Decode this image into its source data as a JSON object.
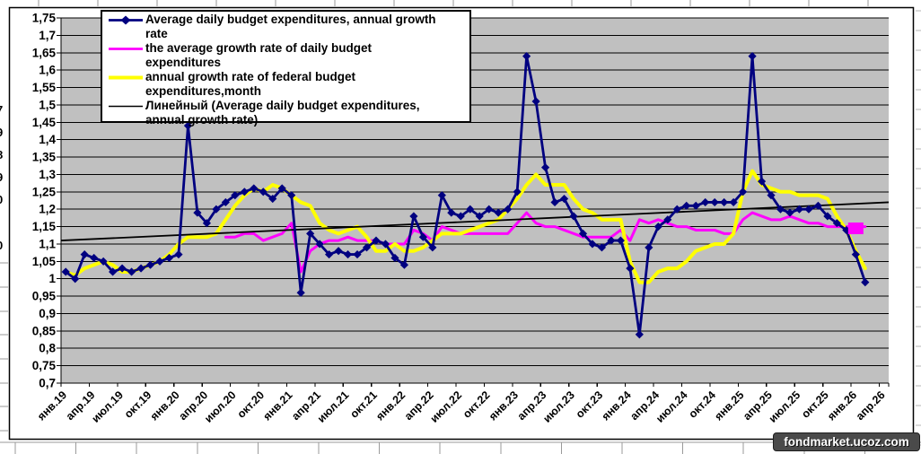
{
  "watermark": {
    "text": "fondmarket.ucoz.com"
  },
  "sheet": {
    "left_digits": [
      "7",
      "9",
      "8",
      "9",
      "0",
      "0"
    ]
  },
  "legend": {
    "items": [
      {
        "name": "Average daily budget expenditures,  annual growth rate",
        "line1": "Average daily budget expenditures,  annual growth",
        "line2": "rate",
        "marker": "line-diamond",
        "color": "#000080"
      },
      {
        "name": "the average growth rate of daily budget expenditures",
        "line1": "the average growth rate of daily budget",
        "line2": "expenditures",
        "marker": "line",
        "color": "#FF00FF"
      },
      {
        "name": "annual growth rate of federal budget expenditures,month",
        "line1": "annual growth rate of federal budget",
        "line2": "expenditures,month",
        "marker": "line",
        "color": "#FFFF00"
      },
      {
        "name": "Линейный (Average daily budget expenditures, annual growth rate)",
        "line1": "Линейный (Average daily budget expenditures,",
        "line2": "annual growth rate)",
        "marker": "line",
        "color": "#000000"
      }
    ]
  },
  "chart_data": {
    "type": "line",
    "title": "",
    "xlabel": "",
    "ylabel": "",
    "ylim": [
      0.7,
      1.75
    ],
    "ytick_step": 0.05,
    "grid": true,
    "plot_bg": "#C0C0C0",
    "legend_position": "top-left-inside",
    "n_categories": 88,
    "x_tick_every": 3,
    "x_tick_labels": [
      "янв.19",
      "апр.19",
      "июл.19",
      "окт.19",
      "янв.20",
      "апр.20",
      "июл.20",
      "окт.20",
      "янв.21",
      "апр.21",
      "июл.21",
      "окт.21",
      "янв.22",
      "апр.22",
      "июл.22",
      "окт.22",
      "янв.23",
      "апр.23",
      "июл.23",
      "окт.23",
      "янв.24",
      "апр.24",
      "июл.24",
      "окт.24",
      "янв.25",
      "апр.25",
      "июл.25",
      "окт.25",
      "янв.26",
      "апр.26"
    ],
    "y_tick_labels": [
      "1,75",
      "1,7",
      "1,65",
      "1,6",
      "1,55",
      "1,5",
      "1,45",
      "1,4",
      "1,35",
      "1,3",
      "1,25",
      "1,2",
      "1,15",
      "1,1",
      "1,05",
      "1",
      "0,95",
      "0,9",
      "0,85",
      "0,8",
      "0,75",
      "0,7"
    ],
    "series": [
      {
        "name": "Average daily budget expenditures,  annual growth rate",
        "color": "#000080",
        "marker": "diamond",
        "line_width": 2.8,
        "start_index": 0,
        "values": [
          1.02,
          1.0,
          1.07,
          1.06,
          1.05,
          1.02,
          1.03,
          1.02,
          1.03,
          1.04,
          1.05,
          1.06,
          1.07,
          1.44,
          1.19,
          1.16,
          1.2,
          1.22,
          1.24,
          1.25,
          1.26,
          1.25,
          1.23,
          1.26,
          1.24,
          0.96,
          1.13,
          1.1,
          1.07,
          1.08,
          1.07,
          1.07,
          1.09,
          1.11,
          1.1,
          1.06,
          1.04,
          1.18,
          1.12,
          1.09,
          1.24,
          1.19,
          1.18,
          1.2,
          1.18,
          1.2,
          1.19,
          1.2,
          1.25,
          1.64,
          1.51,
          1.32,
          1.22,
          1.23,
          1.18,
          1.13,
          1.1,
          1.09,
          1.11,
          1.11,
          1.03,
          0.84,
          1.09,
          1.15,
          1.17,
          1.2,
          1.21,
          1.21,
          1.22,
          1.22,
          1.22,
          1.22,
          1.25,
          1.64,
          1.28,
          1.24,
          1.2,
          1.19,
          1.2,
          1.2,
          1.21,
          1.18,
          1.16,
          1.14,
          1.07,
          0.99
        ]
      },
      {
        "name": "the average growth rate of daily budget expenditures",
        "color": "#FF00FF",
        "marker": "none",
        "line_width": 3,
        "start_index": 17,
        "values": [
          1.12,
          1.12,
          1.13,
          1.13,
          1.11,
          1.12,
          1.13,
          1.16,
          1.02,
          1.08,
          1.1,
          1.11,
          1.11,
          1.12,
          1.11,
          1.11,
          1.11,
          1.1,
          1.1,
          1.1,
          1.14,
          1.13,
          1.11,
          1.15,
          1.14,
          1.13,
          1.13,
          1.13,
          1.13,
          1.13,
          1.13,
          1.16,
          1.19,
          1.16,
          1.15,
          1.15,
          1.14,
          1.13,
          1.12,
          1.12,
          1.12,
          1.12,
          1.14,
          1.11,
          1.17,
          1.16,
          1.17,
          1.16,
          1.15,
          1.15,
          1.14,
          1.14,
          1.14,
          1.13,
          1.13,
          1.17,
          1.19,
          1.18,
          1.17,
          1.17,
          1.18,
          1.17,
          1.16,
          1.16,
          1.15,
          1.15,
          1.15,
          1.15,
          1.15
        ]
      },
      {
        "name": "annual growth rate of federal budget expenditures,month",
        "color": "#FFFF00",
        "marker": "none",
        "line_width": 4,
        "start_index": 0,
        "values": [
          1.02,
          1.01,
          1.03,
          1.04,
          1.05,
          1.04,
          1.02,
          1.02,
          1.03,
          1.04,
          1.05,
          1.07,
          1.1,
          1.12,
          1.12,
          1.12,
          1.13,
          1.17,
          1.21,
          1.24,
          1.26,
          1.25,
          1.27,
          1.26,
          1.24,
          1.22,
          1.21,
          1.16,
          1.14,
          1.13,
          1.14,
          1.15,
          1.12,
          1.08,
          1.08,
          1.1,
          1.08,
          1.08,
          1.09,
          1.11,
          1.13,
          1.13,
          1.13,
          1.14,
          1.15,
          1.16,
          1.17,
          1.2,
          1.23,
          1.27,
          1.3,
          1.27,
          1.27,
          1.27,
          1.23,
          1.2,
          1.19,
          1.17,
          1.17,
          1.17,
          1.05,
          0.99,
          0.99,
          1.02,
          1.03,
          1.03,
          1.05,
          1.08,
          1.09,
          1.1,
          1.1,
          1.13,
          1.25,
          1.31,
          1.27,
          1.26,
          1.25,
          1.25,
          1.24,
          1.24,
          1.24,
          1.23,
          1.18,
          1.14,
          1.08,
          1.03
        ]
      },
      {
        "name": "Линейный (Average daily budget expenditures, annual growth rate)",
        "color": "#000000",
        "marker": "none",
        "line_width": 1.8,
        "trend": true,
        "trend_start": 1.11,
        "trend_end": 1.22
      }
    ],
    "highlight": {
      "series_index": 1,
      "category_index": 84,
      "value": 1.145,
      "shape": "square",
      "color": "#FF00FF"
    }
  }
}
